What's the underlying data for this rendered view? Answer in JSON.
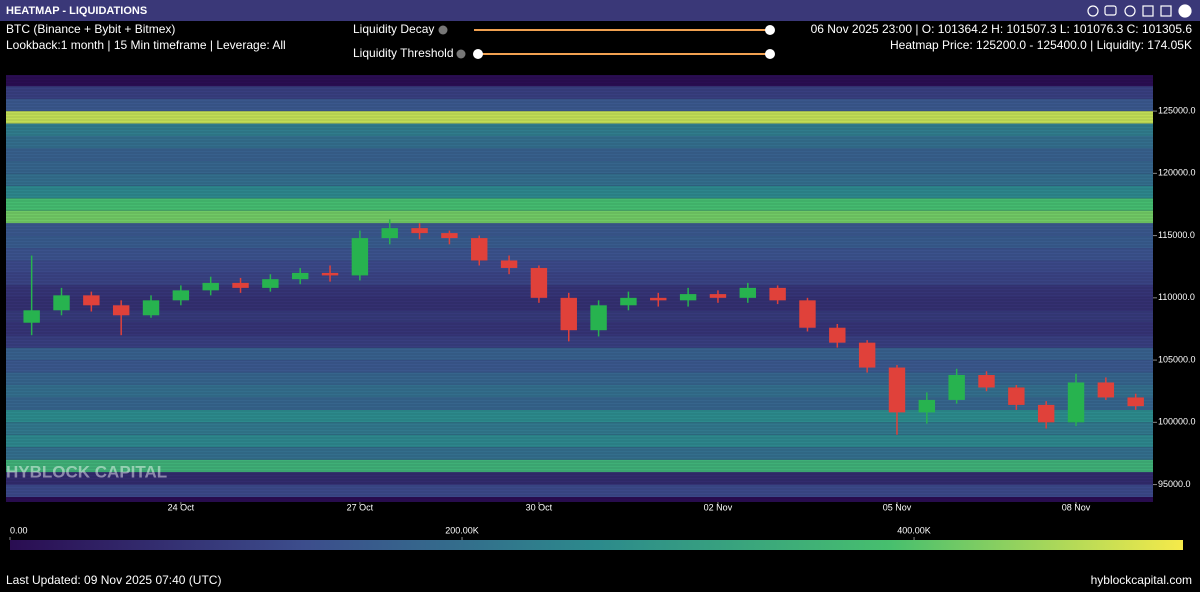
{
  "header": {
    "title": "HEATMAP - LIQUIDATIONS"
  },
  "info": {
    "symbol": "BTC (Binance + Bybit + Bitmex)",
    "settings": "Lookback:1 month | 15 Min timeframe | Leverage: All",
    "ohlc": "06 Nov 2025 23:00 | O: 101364.2 H: 101507.3 L: 101076.3 C: 101305.6",
    "hover": "Heatmap Price: 125200.0 - 125400.0 | Liquidity: 174.05K"
  },
  "controls": {
    "decay": "Liquidity Decay",
    "threshold": "Liquidity Threshold"
  },
  "watermark": "HYBLOCK CAPITAL",
  "footer": {
    "updated": "Last Updated: 09 Nov 2025 07:40 (UTC)",
    "site": "hyblockcapital.com"
  },
  "chart_data": {
    "type": "heatmap-candlestick",
    "xlim": [
      21.07,
      40.29
    ],
    "xticks": [
      {
        "value": 24,
        "label": "24 Oct"
      },
      {
        "value": 27,
        "label": "27 Oct"
      },
      {
        "value": 30,
        "label": "30 Oct"
      },
      {
        "value": 33,
        "label": "02 Nov"
      },
      {
        "value": 36,
        "label": "05 Nov"
      },
      {
        "value": 39,
        "label": "08 Nov"
      }
    ],
    "ylim": [
      93600,
      127900
    ],
    "yticks": [
      {
        "value": 95000,
        "label": "95000.0"
      },
      {
        "value": 100000,
        "label": "100000.0"
      },
      {
        "value": 105000,
        "label": "105000.0"
      },
      {
        "value": 110000,
        "label": "110000.0"
      },
      {
        "value": 115000,
        "label": "115000.0"
      },
      {
        "value": 120000,
        "label": "120000.0"
      },
      {
        "value": 125000,
        "label": "125000.0"
      }
    ],
    "heatmap": {
      "bins": [
        94000,
        95000,
        96000,
        97000,
        98000,
        99000,
        100000,
        101000,
        102000,
        103000,
        104000,
        105000,
        106000,
        107000,
        108000,
        109000,
        110000,
        111000,
        112000,
        113000,
        114000,
        115000,
        116000,
        117000,
        118000,
        119000,
        120000,
        121000,
        122000,
        123000,
        124000,
        125000,
        126000,
        127000
      ],
      "values": [
        120000,
        60000,
        350000,
        200000,
        250000,
        220000,
        260000,
        180000,
        200000,
        180000,
        150000,
        170000,
        100000,
        80000,
        90000,
        70000,
        80000,
        110000,
        120000,
        140000,
        160000,
        150000,
        420000,
        380000,
        250000,
        200000,
        180000,
        170000,
        200000,
        230000,
        480000,
        150000,
        100000
      ]
    },
    "colorscale": [
      "#2a0d52",
      "#3c4d8c",
      "#2c8a8c",
      "#47bf6e",
      "#f6ea4a"
    ],
    "clim": [
      0,
      519000
    ],
    "cticks": [
      {
        "value": 0,
        "label": "0.00"
      },
      {
        "value": 200000,
        "label": "200.00K"
      },
      {
        "value": 400000,
        "label": "400.00K"
      }
    ],
    "up_color": "#27b34f",
    "down_color": "#e0413a",
    "x": [
      21.5,
      22,
      22.5,
      23,
      23.5,
      24,
      24.5,
      25,
      25.5,
      26,
      26.5,
      27,
      27.5,
      28,
      28.5,
      29,
      29.5,
      30,
      30.5,
      31,
      31.5,
      32,
      32.5,
      33,
      33.5,
      34,
      34.5,
      35,
      35.5,
      36,
      36.5,
      37,
      37.5,
      38,
      38.5,
      39,
      39.5,
      40
    ],
    "open": [
      108000,
      109000,
      110200,
      109400,
      108600,
      109800,
      110600,
      111200,
      110800,
      111500,
      112000,
      111800,
      114800,
      115600,
      115200,
      114800,
      113000,
      112400,
      110000,
      107400,
      109400,
      110000,
      109800,
      110300,
      110000,
      110800,
      109800,
      107600,
      106400,
      104400,
      100800,
      101800,
      103800,
      102800,
      101400,
      100000,
      103200,
      102000
    ],
    "high": [
      113400,
      110800,
      110500,
      109800,
      110200,
      111000,
      111700,
      111600,
      111900,
      112400,
      112600,
      115400,
      116300,
      116000,
      115400,
      115000,
      113400,
      112600,
      110400,
      109800,
      110500,
      110400,
      110800,
      110600,
      111200,
      111000,
      110000,
      107900,
      106600,
      104600,
      102400,
      104300,
      104100,
      103000,
      101700,
      103900,
      103600,
      102300
    ],
    "low": [
      107000,
      108600,
      108900,
      107000,
      108400,
      109400,
      110200,
      110400,
      110500,
      111100,
      111300,
      111400,
      114300,
      114700,
      114300,
      112600,
      111900,
      109600,
      106500,
      106900,
      109000,
      109300,
      109300,
      109600,
      109600,
      109500,
      107300,
      106000,
      104000,
      99000,
      99900,
      101500,
      102500,
      101000,
      99500,
      99700,
      101800,
      101000
    ],
    "close": [
      109000,
      110200,
      109400,
      108600,
      109800,
      110600,
      111200,
      110800,
      111500,
      112000,
      111800,
      114800,
      115600,
      115200,
      114800,
      113000,
      112400,
      110000,
      107400,
      109400,
      110000,
      109800,
      110300,
      110000,
      110800,
      109800,
      107600,
      106400,
      104400,
      100800,
      101800,
      103800,
      102800,
      101400,
      100000,
      103200,
      102000,
      101300
    ]
  }
}
